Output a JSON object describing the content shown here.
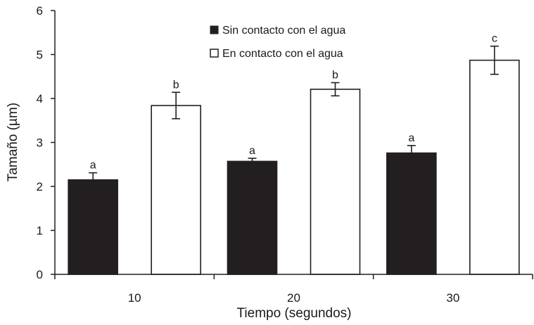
{
  "chart_data": {
    "type": "bar",
    "xlabel": "Tiempo (segundos)",
    "ylabel": "Tamaño (µm)",
    "categories": [
      "10",
      "20",
      "30"
    ],
    "ylim": [
      0,
      6
    ],
    "yticks": [
      "0",
      "1",
      "2",
      "3",
      "4",
      "5",
      "6"
    ],
    "series": [
      {
        "name": "Sin contacto con el agua",
        "fill": "#231f20",
        "values": [
          2.15,
          2.57,
          2.76
        ],
        "errors": [
          0.16,
          0.07,
          0.17
        ],
        "labels": [
          "a",
          "a",
          "a"
        ]
      },
      {
        "name": "En contacto con el agua",
        "fill": "#ffffff",
        "values": [
          3.84,
          4.21,
          4.87
        ],
        "errors": [
          0.3,
          0.15,
          0.32
        ],
        "labels": [
          "b",
          "b",
          "c"
        ]
      }
    ],
    "legend_position": "top-center",
    "grid": false
  }
}
